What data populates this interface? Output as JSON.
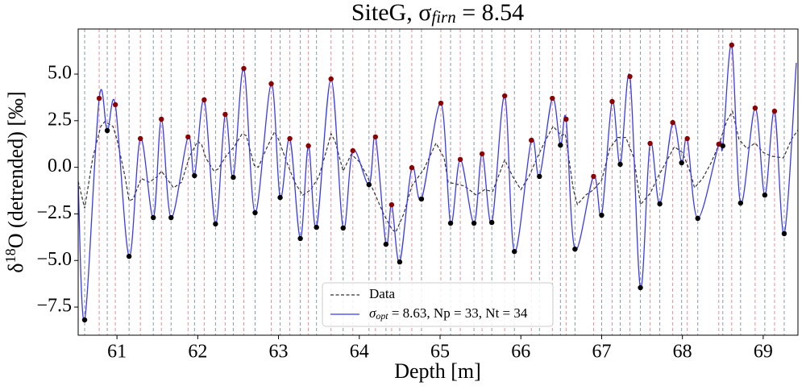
{
  "chart_data": {
    "type": "line",
    "title": [
      "SiteG, σ",
      "firn",
      " = 8.54"
    ],
    "x_label": "Depth [m]",
    "y_label": [
      "δ",
      "18",
      "O (detrended) [‰]"
    ],
    "xlim": [
      60.52,
      69.43
    ],
    "ylim": [
      -9.01,
      7.42
    ],
    "xticks": [
      61,
      62,
      63,
      64,
      65,
      66,
      67,
      68,
      69
    ],
    "yticks": [
      {
        "value": -7.5,
        "label": "−7.5"
      },
      {
        "value": -5,
        "label": "−5.0"
      },
      {
        "value": -2.5,
        "label": "−2.5"
      },
      {
        "value": 0,
        "label": "0.0"
      },
      {
        "value": 2.5,
        "label": "2.5"
      },
      {
        "value": 5,
        "label": "5.0"
      }
    ],
    "legend": "lower center",
    "series": [
      {
        "name": "Data",
        "color": "#333333",
        "dashed": true,
        "x": [
          60.52,
          60.6,
          60.7,
          60.8,
          60.85,
          60.95,
          61.0,
          61.1,
          61.15,
          61.2,
          61.3,
          61.4,
          61.5,
          61.55,
          61.65,
          61.7,
          61.8,
          61.9,
          62.0,
          62.05,
          62.1,
          62.2,
          62.25,
          62.35,
          62.45,
          62.55,
          62.6,
          62.7,
          62.75,
          62.85,
          62.95,
          63.0,
          63.1,
          63.2,
          63.3,
          63.4,
          63.5,
          63.6,
          63.65,
          63.7,
          63.8,
          63.9,
          64.0,
          64.1,
          64.2,
          64.3,
          64.4,
          64.45,
          64.55,
          64.65,
          64.8,
          64.95,
          65.05,
          65.1,
          65.3,
          65.45,
          65.55,
          65.65,
          65.8,
          65.9,
          66.0,
          66.1,
          66.2,
          66.3,
          66.4,
          66.5,
          66.55,
          66.65,
          66.7,
          66.8,
          66.9,
          67.0,
          67.1,
          67.2,
          67.3,
          67.4,
          67.48,
          67.6,
          67.7,
          67.8,
          67.9,
          68.0,
          68.1,
          68.15,
          68.25,
          68.35,
          68.45,
          68.55,
          68.62,
          68.7,
          68.8,
          68.9,
          69.0,
          69.1,
          69.25,
          69.35,
          69.43
        ],
        "values": [
          -0.75,
          -2.2,
          0.5,
          2.2,
          2.45,
          2.2,
          1.5,
          -0.5,
          -1.8,
          -1.7,
          -0.6,
          -0.8,
          -0.5,
          -0.2,
          -0.8,
          -1.1,
          -0.8,
          0.6,
          1.4,
          1.2,
          0.5,
          -0.2,
          -0.1,
          0.6,
          1.1,
          1.8,
          1.7,
          0.1,
          0,
          1.0,
          1.9,
          1.5,
          0.3,
          -0.8,
          -1.5,
          -1.2,
          -0.5,
          1.0,
          1.8,
          1.4,
          -0.2,
          0.7,
          0.3,
          -0.5,
          -1.5,
          -2.5,
          -3.3,
          -3.5,
          -2.5,
          -1.0,
          -0.1,
          1.3,
          0.5,
          -0.8,
          -1.0,
          -1.5,
          -1.2,
          -1.3,
          0.4,
          -0.5,
          -1.2,
          -0.5,
          0.5,
          1.4,
          2.2,
          1.7,
          1.8,
          -1.2,
          -2.0,
          -1.5,
          -1.2,
          -0.7,
          1.0,
          1.6,
          1.6,
          0.5,
          -2.0,
          -1.4,
          -0.5,
          0.3,
          1.1,
          0.8,
          -0.3,
          -1.1,
          -0.6,
          0.2,
          1.2,
          2.5,
          3.0,
          1.5,
          1.0,
          1.3,
          0.8,
          0.6,
          0.5,
          1.5,
          2.0
        ]
      },
      {
        "name": [
          "σ",
          "opt",
          " = 8.63, Np = 33, Nt = 34"
        ],
        "color": "#3a3af0",
        "dashed": false,
        "x": [
          60.52,
          60.6,
          60.78,
          60.88,
          60.98,
          61.15,
          61.29,
          61.45,
          61.55,
          61.67,
          61.88,
          61.96,
          62.08,
          62.22,
          62.34,
          62.44,
          62.57,
          62.71,
          62.91,
          63.02,
          63.14,
          63.27,
          63.37,
          63.47,
          63.65,
          63.8,
          63.92,
          64.12,
          64.2,
          64.33,
          64.4,
          64.5,
          64.65,
          64.77,
          65.01,
          65.13,
          65.25,
          65.42,
          65.52,
          65.64,
          65.8,
          65.92,
          66.13,
          66.23,
          66.39,
          66.49,
          66.56,
          66.67,
          66.9,
          67.0,
          67.13,
          67.23,
          67.35,
          67.48,
          67.6,
          67.72,
          67.88,
          67.99,
          68.06,
          68.19,
          68.45,
          68.5,
          68.61,
          68.72,
          68.9,
          69.02,
          69.14,
          69.26,
          69.41
        ],
        "values": [
          -0.8,
          -8.19,
          3.7,
          1.97,
          3.36,
          -4.78,
          1.54,
          -2.7,
          2.58,
          -2.7,
          1.63,
          -0.45,
          3.62,
          -3.04,
          2.84,
          -0.54,
          5.3,
          -2.44,
          4.48,
          -1.62,
          1.54,
          -3.82,
          1.15,
          -3.22,
          4.74,
          -3.26,
          0.89,
          -0.93,
          1.63,
          -4.13,
          -2.01,
          -5.08,
          -0.02,
          -1.7,
          3.44,
          -3.0,
          0.42,
          -3.0,
          0.72,
          -2.96,
          3.83,
          -4.52,
          1.45,
          -0.49,
          3.7,
          1.19,
          2.58,
          -4.39,
          -0.49,
          -2.57,
          3.53,
          0.16,
          4.87,
          -6.46,
          1.28,
          -1.96,
          2.4,
          0.24,
          1.54,
          -2.74,
          1.24,
          1.15,
          6.56,
          -1.92,
          3.18,
          -1.49,
          3.01,
          -3.56,
          5.6
        ]
      }
    ],
    "peaks": {
      "color": "#8b0000",
      "line_color": "#e0909c",
      "x": [
        60.78,
        60.98,
        61.29,
        61.55,
        61.88,
        62.08,
        62.34,
        62.57,
        62.91,
        63.14,
        63.37,
        63.65,
        63.92,
        64.2,
        64.4,
        64.65,
        65.01,
        65.25,
        65.52,
        65.8,
        66.13,
        66.39,
        66.56,
        66.9,
        67.13,
        67.35,
        67.6,
        67.88,
        68.06,
        68.45,
        68.61,
        68.9,
        69.14
      ],
      "values": [
        3.7,
        3.36,
        1.54,
        2.58,
        1.63,
        3.62,
        2.84,
        5.3,
        4.48,
        1.54,
        1.15,
        4.74,
        0.89,
        1.63,
        -2.01,
        -0.02,
        3.44,
        0.42,
        0.72,
        3.83,
        1.45,
        3.7,
        2.58,
        -0.49,
        3.53,
        4.87,
        1.28,
        2.4,
        1.54,
        1.24,
        6.56,
        3.18,
        3.01
      ]
    },
    "troughs": {
      "color": "#000000",
      "line_color": "#8a9aa8",
      "x": [
        60.6,
        60.88,
        61.15,
        61.45,
        61.67,
        61.96,
        62.22,
        62.44,
        62.71,
        63.02,
        63.27,
        63.47,
        63.8,
        64.12,
        64.33,
        64.5,
        64.77,
        65.13,
        65.42,
        65.64,
        65.92,
        66.23,
        66.49,
        66.67,
        67.0,
        67.23,
        67.48,
        67.72,
        67.99,
        68.19,
        68.5,
        68.72,
        69.02,
        69.26
      ],
      "values": [
        -8.19,
        1.97,
        -4.78,
        -2.7,
        -2.7,
        -0.45,
        -3.04,
        -0.54,
        -2.44,
        -1.62,
        -3.82,
        -3.22,
        -3.26,
        -0.93,
        -4.13,
        -5.08,
        -1.7,
        -3.0,
        -3.0,
        -2.96,
        -4.52,
        -0.49,
        1.19,
        -4.39,
        -2.57,
        0.16,
        -6.46,
        -1.96,
        0.24,
        -2.74,
        1.15,
        -1.92,
        -1.49,
        -3.56
      ]
    }
  }
}
